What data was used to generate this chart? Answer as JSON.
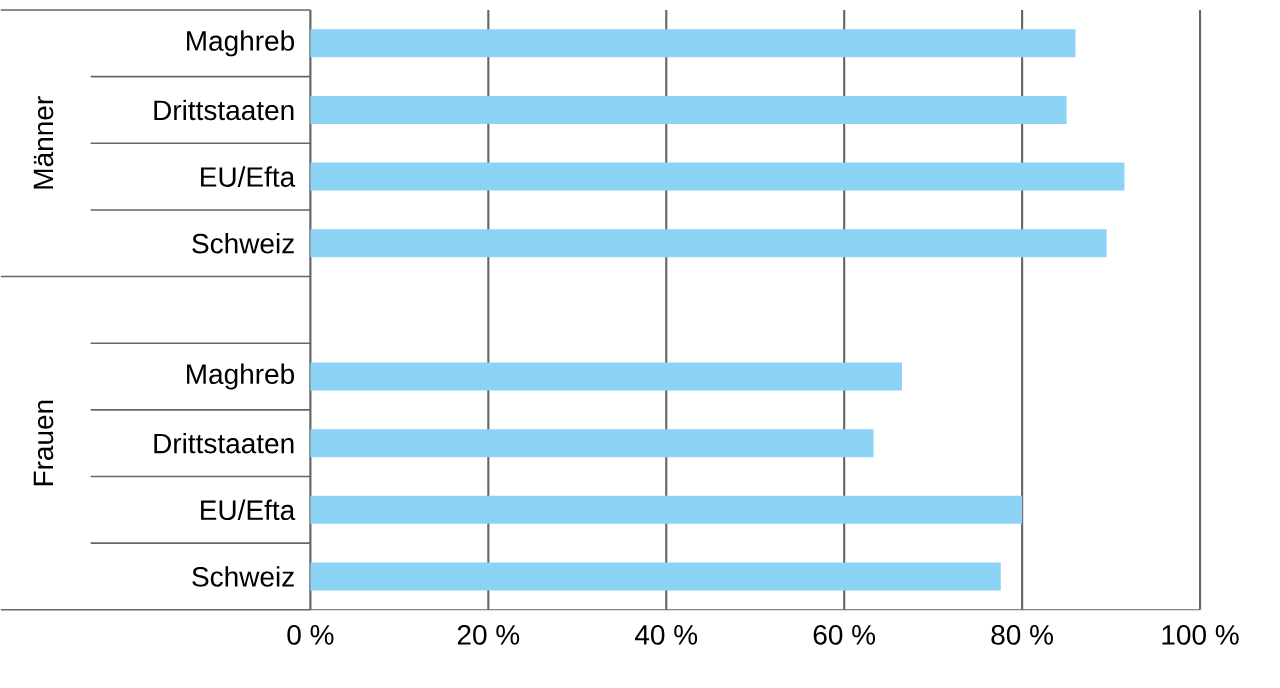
{
  "chart_data": {
    "type": "bar",
    "orientation": "horizontal",
    "categories": [
      "Maghreb",
      "Drittstaaten",
      "EU/Efta",
      "Schweiz",
      null,
      "Maghreb",
      "Drittstaaten",
      "EU/Efta",
      "Schweiz"
    ],
    "values": [
      86,
      85,
      91.5,
      89.5,
      null,
      66.5,
      63.3,
      80,
      77.6
    ],
    "color": "#8dd3f5",
    "xlim": [
      0,
      100
    ],
    "xticks": [
      {
        "value": 0,
        "label": "0 %"
      },
      {
        "value": 20,
        "label": "20 %"
      },
      {
        "value": 40,
        "label": "40 %"
      },
      {
        "value": 60,
        "label": "60 %"
      },
      {
        "value": 80,
        "label": "80 %"
      },
      {
        "value": 100,
        "label": "100 %"
      }
    ],
    "grid": "x",
    "annotations": [
      "Männer",
      "Frauen"
    ]
  }
}
